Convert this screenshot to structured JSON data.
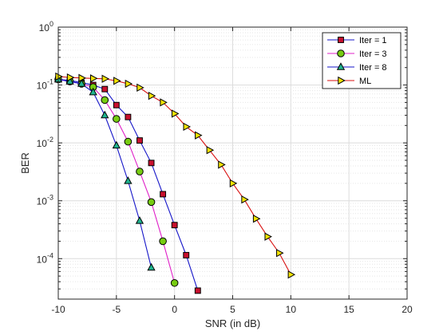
{
  "chart_data": {
    "type": "line",
    "xlabel": "SNR (in dB)",
    "ylabel": "BER",
    "xlim": [
      -10,
      20
    ],
    "ylim": [
      2e-05,
      1
    ],
    "y_scale": "log",
    "x_ticks": [
      -10,
      -5,
      0,
      5,
      10,
      15,
      20
    ],
    "x_tick_labels": [
      "-10",
      "-5",
      "0",
      "5",
      "10",
      "15",
      "20"
    ],
    "y_tick_labels": [
      {
        "base": "10",
        "exp": "0",
        "value": 1
      },
      {
        "base": "10",
        "exp": "-1",
        "value": 0.1
      },
      {
        "base": "10",
        "exp": "-2",
        "value": 0.01
      },
      {
        "base": "10",
        "exp": "-3",
        "value": 0.001
      },
      {
        "base": "10",
        "exp": "-4",
        "value": 0.0001
      }
    ],
    "grid": true,
    "legend_position": "top-right",
    "series": [
      {
        "name": "Iter = 1",
        "marker": "square",
        "line_color": "#1515c8",
        "marker_color": "#c8102e",
        "x": [
          -10,
          -9,
          -8,
          -7,
          -6,
          -5,
          -4,
          -3,
          -2,
          -1,
          0,
          1,
          2
        ],
        "y": [
          0.125,
          0.12,
          0.11,
          0.1,
          0.085,
          0.045,
          0.028,
          0.011,
          0.0045,
          0.0013,
          0.00038,
          0.000115,
          2.8e-05
        ]
      },
      {
        "name": "Iter = 3",
        "marker": "circle",
        "line_color": "#e020c8",
        "marker_color": "#77cc11",
        "x": [
          -10,
          -9,
          -8,
          -7,
          -6,
          -5,
          -4,
          -3,
          -2,
          -1,
          0
        ],
        "y": [
          0.125,
          0.115,
          0.105,
          0.092,
          0.055,
          0.026,
          0.0105,
          0.0032,
          0.00095,
          0.0002,
          3.8e-05
        ]
      },
      {
        "name": "Iter = 8",
        "marker": "triangle-up",
        "line_color": "#1515c8",
        "marker_color": "#1fb58f",
        "x": [
          -10,
          -9,
          -8,
          -7,
          -6,
          -5,
          -4,
          -3,
          -2
        ],
        "y": [
          0.125,
          0.115,
          0.105,
          0.075,
          0.03,
          0.009,
          0.0022,
          0.00045,
          7e-05
        ]
      },
      {
        "name": "ML",
        "marker": "triangle-right",
        "line_color": "#d81010",
        "marker_color": "#f2e200",
        "x": [
          -10,
          -9,
          -8,
          -7,
          -6,
          -5,
          -4,
          -3,
          -2,
          -1,
          0,
          1,
          2,
          3,
          4,
          5,
          6,
          7,
          8,
          9,
          10
        ],
        "y": [
          0.14,
          0.135,
          0.132,
          0.13,
          0.128,
          0.118,
          0.105,
          0.09,
          0.065,
          0.05,
          0.032,
          0.019,
          0.0135,
          0.0075,
          0.0042,
          0.002,
          0.00105,
          0.00049,
          0.00024,
          0.000125,
          5.3e-05
        ]
      }
    ]
  }
}
